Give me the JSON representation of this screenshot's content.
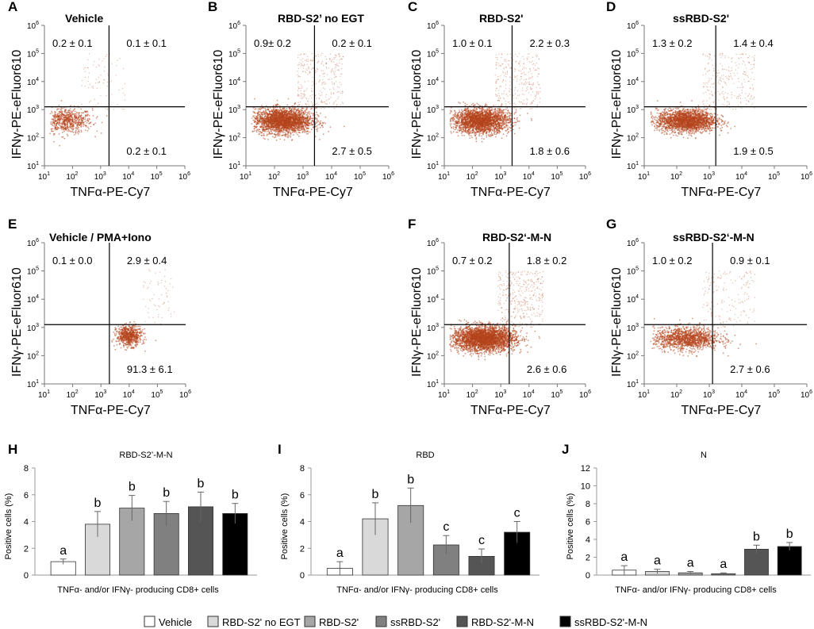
{
  "chart_data": {
    "flow_panels": [
      {
        "letter": "A",
        "title": "Vehicle",
        "type": "scatter",
        "xlabel": "TNFα-PE-Cy7",
        "ylabel": "IFNγ-PE-eFluor610",
        "xlim_log10": [
          1,
          6
        ],
        "ylim_log10": [
          1,
          6
        ],
        "quadrants": {
          "upper_left": "0.2 ± 0.1",
          "upper_right": "0.1 ± 0.1",
          "lower_right": "0.2 ± 0.1"
        },
        "density": "low",
        "cluster": {
          "x": 1.8,
          "y": 2.6,
          "sx": 0.45,
          "sy": 0.22,
          "n": 700
        }
      },
      {
        "letter": "B",
        "title": "RBD-S2’ no EGT",
        "type": "scatter",
        "xlabel": "TNFα-PE-Cy7",
        "ylabel": "IFNγ-PE-eFluor610",
        "xlim_log10": [
          1,
          6
        ],
        "ylim_log10": [
          1,
          6
        ],
        "quadrants": {
          "upper_left": "0.9± 0.2",
          "upper_right": "0.2 ± 0.1",
          "lower_right": "2.7 ± 0.5"
        },
        "density": "high",
        "cluster": {
          "x": 2.3,
          "y": 2.6,
          "sx": 0.5,
          "sy": 0.22,
          "n": 2600
        }
      },
      {
        "letter": "C",
        "title": "RBD-S2'",
        "type": "scatter",
        "xlabel": "TNFα-PE-Cy7",
        "ylabel": "IFNγ-PE-eFluor610",
        "xlim_log10": [
          1,
          6
        ],
        "ylim_log10": [
          1,
          6
        ],
        "quadrants": {
          "upper_left": "1.0 ± 0.1",
          "upper_right": "2.2 ± 0.3",
          "lower_right": "1.8 ± 0.6"
        },
        "density": "high",
        "cluster": {
          "x": 2.3,
          "y": 2.6,
          "sx": 0.5,
          "sy": 0.22,
          "n": 2400
        }
      },
      {
        "letter": "D",
        "title": "ssRBD-S2'",
        "type": "scatter",
        "xlabel": "TNFα-PE-Cy7",
        "ylabel": "IFNγ-PE-eFluor610",
        "xlim_log10": [
          1,
          6
        ],
        "ylim_log10": [
          1,
          6
        ],
        "quadrants": {
          "upper_left": "1.3 ± 0.2",
          "upper_right": "1.4 ± 0.4",
          "lower_right": "1.9 ± 0.5"
        },
        "density": "high",
        "cluster": {
          "x": 2.3,
          "y": 2.6,
          "sx": 0.45,
          "sy": 0.2,
          "n": 2200
        }
      },
      {
        "letter": "E",
        "title": "Vehicle / PMA+Iono",
        "type": "scatter",
        "xlabel": "TNFα-PE-Cy7",
        "ylabel": "IFNγ-PE-eFluor610",
        "xlim_log10": [
          1,
          6
        ],
        "ylim_log10": [
          1,
          6
        ],
        "quadrants": {
          "upper_left": "0.1 ± 0.0",
          "upper_right": "2.9 ± 0.4",
          "lower_right": "91.3 ± 6.1"
        },
        "density": "medium",
        "cluster": {
          "x": 4.0,
          "y": 2.7,
          "sx": 0.22,
          "sy": 0.18,
          "n": 700
        }
      },
      {
        "letter": "F",
        "title": "RBD-S2‘-M-N",
        "type": "scatter",
        "xlabel": "TNFα-PE-Cy7",
        "ylabel": "IFNγ-PE-eFluor610",
        "xlim_log10": [
          1,
          6
        ],
        "ylim_log10": [
          1,
          6
        ],
        "quadrants": {
          "upper_left": "0.7 ± 0.2",
          "upper_right": "1.8 ± 0.2",
          "lower_right": "2.6 ± 0.6"
        },
        "density": "very-high",
        "cluster": {
          "x": 2.4,
          "y": 2.6,
          "sx": 0.55,
          "sy": 0.22,
          "n": 3200
        }
      },
      {
        "letter": "G",
        "title": "ssRBD-S2‘-M-N",
        "type": "scatter",
        "xlabel": "TNFα-PE-Cy7",
        "ylabel": "IFNγ-PE-eFluor610",
        "xlim_log10": [
          1,
          6
        ],
        "ylim_log10": [
          1,
          6
        ],
        "quadrants": {
          "upper_left": "1.0 ± 0.2",
          "upper_right": "0.9 ± 0.1",
          "lower_right": "2.7 ± 0.6"
        },
        "density": "medium",
        "cluster": {
          "x": 2.3,
          "y": 2.6,
          "sx": 0.5,
          "sy": 0.2,
          "n": 1400
        }
      }
    ],
    "bar_panels": [
      {
        "letter": "H",
        "title": "RBD-S2’-M-N",
        "type": "bar",
        "ylabel": "Positive cells (%)",
        "xlabel": "TNFα- and/or IFNγ- producing CD8+ cells",
        "ylim": [
          0,
          8
        ],
        "yticks": [
          0,
          2,
          4,
          6,
          8
        ],
        "values": [
          1.0,
          3.8,
          5.0,
          4.6,
          5.1,
          4.6
        ],
        "errors": [
          0.2,
          0.95,
          0.95,
          0.9,
          1.1,
          0.75
        ],
        "letters": [
          "a",
          "b",
          "b",
          "b",
          "b",
          "b"
        ]
      },
      {
        "letter": "I",
        "title": "RBD",
        "type": "bar",
        "ylabel": "Positive cells (%)",
        "xlabel": "TNFα- and/or IFNγ- producing CD8+ cells",
        "ylim": [
          0,
          8
        ],
        "yticks": [
          0,
          2,
          4,
          6,
          8
        ],
        "values": [
          0.5,
          4.2,
          5.2,
          2.25,
          1.4,
          3.2
        ],
        "errors": [
          0.5,
          1.2,
          1.3,
          0.7,
          0.55,
          0.8
        ],
        "letters": [
          "a",
          "b",
          "b",
          "c",
          "c",
          "c"
        ]
      },
      {
        "letter": "J",
        "title": "N",
        "type": "bar",
        "ylabel": "Positive cells (%)",
        "xlabel": "TNFα- and/or IFNγ- producing CD8+ cells",
        "ylim": [
          0,
          12
        ],
        "yticks": [
          0,
          2,
          4,
          6,
          8,
          10,
          12
        ],
        "values": [
          0.55,
          0.4,
          0.25,
          0.15,
          2.9,
          3.2
        ],
        "errors": [
          0.5,
          0.25,
          0.15,
          0.1,
          0.45,
          0.45
        ],
        "letters": [
          "a",
          "a",
          "a",
          "a",
          "b",
          "b"
        ]
      }
    ],
    "series": [
      {
        "name": "Vehicle",
        "color": "#ffffff"
      },
      {
        "name": "RBD-S2' no EGT",
        "color": "#d9d9d9"
      },
      {
        "name": "RBD-S2'",
        "color": "#a6a6a6"
      },
      {
        "name": "ssRBD-S2'",
        "color": "#808080"
      },
      {
        "name": "RBD-S2'-M-N",
        "color": "#555555"
      },
      {
        "name": "ssRBD-S2'-M-N",
        "color": "#000000"
      }
    ],
    "dot_color": "#b5441c"
  }
}
